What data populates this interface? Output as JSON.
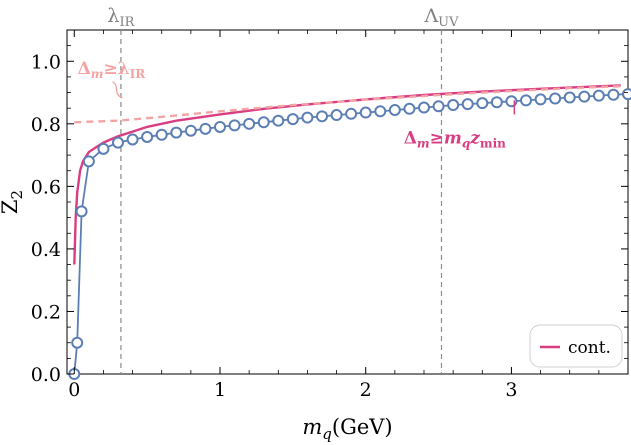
{
  "chart_data": {
    "type": "line",
    "xlabel": "m",
    "xlabel_sub": "q",
    "xlabel_unit": "(GeV)",
    "ylabel": "Z",
    "ylabel_sub": "2",
    "xlim": [
      -0.05,
      3.8
    ],
    "ylim": [
      0.0,
      1.1
    ],
    "xticks": [
      0,
      1,
      2,
      3
    ],
    "xtick_labels": [
      "0",
      "1",
      "2",
      "3"
    ],
    "yticks": [
      0.0,
      0.2,
      0.4,
      0.6,
      0.8,
      1.0
    ],
    "ytick_labels": [
      "0.0",
      "0.2",
      "0.4",
      "0.6",
      "0.8",
      "1.0"
    ],
    "reference_lines": [
      {
        "label": "λ",
        "label_sub": "IR",
        "x": 0.32
      },
      {
        "label": "Λ",
        "label_sub": "UV",
        "x": 2.52
      }
    ],
    "annotations": [
      {
        "text": "Δ",
        "sub": "m",
        "rel": "≥",
        "rhs": "λ",
        "rhs_sub": "IR",
        "color": "#f4a3a3",
        "x": 0.4,
        "y": 0.915
      },
      {
        "text": "Δ",
        "sub": "m",
        "rel": "≥",
        "rhs": "m",
        "rhs_sub": "q",
        "rhs2": "z",
        "rhs2_sub": "min",
        "color": "#d93d82",
        "x": 3.05,
        "y": 0.795
      }
    ],
    "legend": {
      "placement": "bottom-right",
      "entries": [
        {
          "label": "cont.",
          "color": "#d93d82"
        }
      ]
    },
    "series": [
      {
        "name": "cont.",
        "style": "solid",
        "color": "#d93d82",
        "x": [
          0.0,
          0.01,
          0.02,
          0.04,
          0.06,
          0.1,
          0.15,
          0.2,
          0.3,
          0.4,
          0.5,
          0.7,
          1.0,
          1.3,
          1.6,
          2.0,
          2.4,
          2.8,
          3.2,
          3.6,
          3.75
        ],
        "y": [
          0.35,
          0.5,
          0.58,
          0.65,
          0.68,
          0.71,
          0.725,
          0.74,
          0.76,
          0.775,
          0.79,
          0.81,
          0.83,
          0.848,
          0.862,
          0.878,
          0.892,
          0.903,
          0.912,
          0.92,
          0.923
        ]
      },
      {
        "name": "",
        "style": "dashed",
        "color": "#f4a3a3",
        "x": [
          0.0,
          0.3,
          0.6,
          1.0,
          1.5,
          2.0,
          2.5,
          3.0,
          3.5,
          3.75
        ],
        "y": [
          0.805,
          0.81,
          0.822,
          0.84,
          0.86,
          0.877,
          0.892,
          0.905,
          0.916,
          0.92
        ]
      },
      {
        "name": "",
        "style": "markers",
        "color": "#5b7fb4",
        "x": [
          0.0,
          0.02,
          0.05,
          0.1,
          0.2,
          0.3,
          0.4,
          0.5,
          0.6,
          0.7,
          0.8,
          0.9,
          1.0,
          1.1,
          1.2,
          1.3,
          1.4,
          1.5,
          1.6,
          1.7,
          1.8,
          1.9,
          2.0,
          2.1,
          2.2,
          2.3,
          2.4,
          2.5,
          2.6,
          2.7,
          2.8,
          2.9,
          3.0,
          3.1,
          3.2,
          3.3,
          3.4,
          3.5,
          3.6,
          3.7,
          3.8
        ],
        "y": [
          0.0,
          0.1,
          0.52,
          0.68,
          0.72,
          0.74,
          0.75,
          0.758,
          0.765,
          0.772,
          0.778,
          0.784,
          0.79,
          0.795,
          0.8,
          0.805,
          0.81,
          0.815,
          0.82,
          0.824,
          0.828,
          0.832,
          0.836,
          0.84,
          0.844,
          0.848,
          0.852,
          0.856,
          0.86,
          0.863,
          0.866,
          0.869,
          0.872,
          0.875,
          0.878,
          0.881,
          0.884,
          0.887,
          0.89,
          0.893,
          0.895
        ]
      }
    ]
  }
}
